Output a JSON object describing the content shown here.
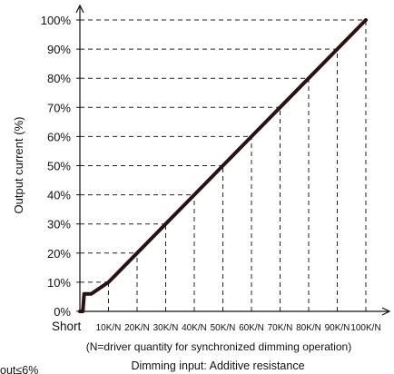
{
  "chart_data": {
    "type": "line",
    "ylabel": "Output current (%)",
    "xlabel": "Dimming input: Additive resistance",
    "x_note": "(N=driver quantity for synchronized dimming operation)",
    "x_tick_labels": [
      "Short",
      "10K/N",
      "20K/N",
      "30K/N",
      "40K/N",
      "50K/N",
      "60K/N",
      "70K/N",
      "80K/N",
      "90K/N",
      "100K/N"
    ],
    "y_tick_labels": [
      "0%",
      "10%",
      "20%",
      "30%",
      "40%",
      "50%",
      "60%",
      "70%",
      "80%",
      "90%",
      "100%"
    ],
    "xlim": [
      0,
      100
    ],
    "ylim": [
      0,
      100
    ],
    "grid": "dashed guide lines from each 10K/N step to the curve",
    "series": [
      {
        "color": "#2a1212",
        "x": [
          0,
          1,
          1.5,
          4,
          10,
          20,
          30,
          40,
          50,
          60,
          70,
          80,
          90,
          100
        ],
        "y": [
          0,
          0,
          6,
          6,
          10,
          20,
          30,
          40,
          50,
          60,
          70,
          80,
          90,
          100
        ]
      }
    ],
    "bottom_left_fragment": "out≤6%"
  }
}
